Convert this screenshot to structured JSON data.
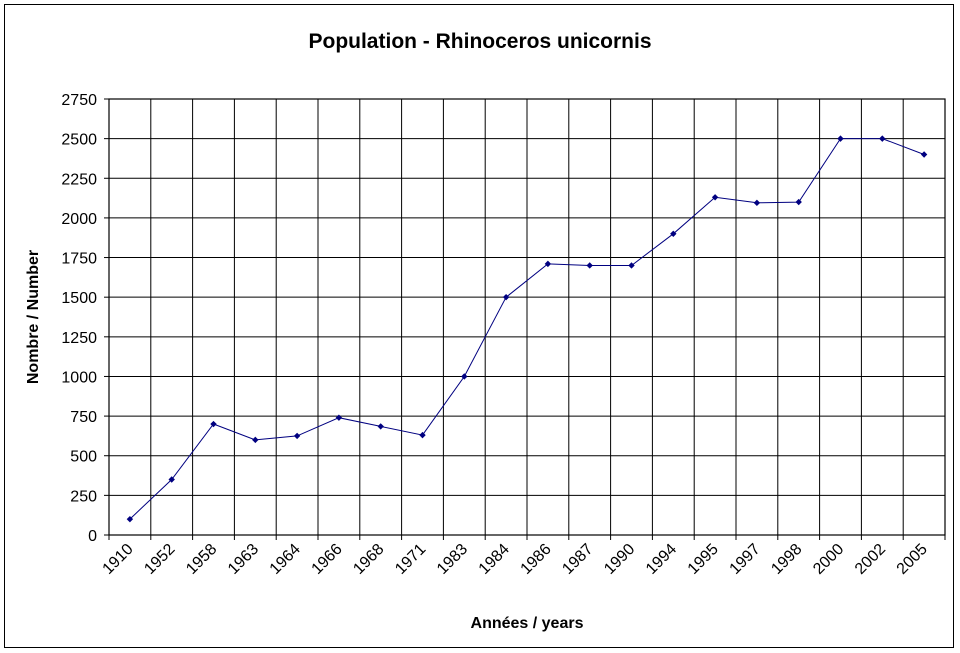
{
  "chart_data": {
    "type": "line",
    "title": "Population - Rhinoceros unicornis",
    "xlabel": "Années / years",
    "ylabel": "Nombre /  Number",
    "categories": [
      "1910",
      "1952",
      "1958",
      "1963",
      "1964",
      "1966",
      "1968",
      "1971",
      "1983",
      "1984",
      "1986",
      "1987",
      "1990",
      "1994",
      "1995",
      "1997",
      "1998",
      "2000",
      "2002",
      "2005"
    ],
    "series": [
      {
        "values": [
          100,
          350,
          700,
          600,
          625,
          740,
          685,
          630,
          1000,
          1500,
          1710,
          1700,
          1700,
          1900,
          2130,
          2095,
          2100,
          2500,
          2500,
          2400
        ],
        "color": "#000080"
      }
    ],
    "ylim": [
      0,
      2750
    ],
    "yticks": [
      0,
      250,
      500,
      750,
      1000,
      1250,
      1500,
      1750,
      2000,
      2250,
      2500,
      2750
    ],
    "grid": true,
    "legend": "none"
  }
}
